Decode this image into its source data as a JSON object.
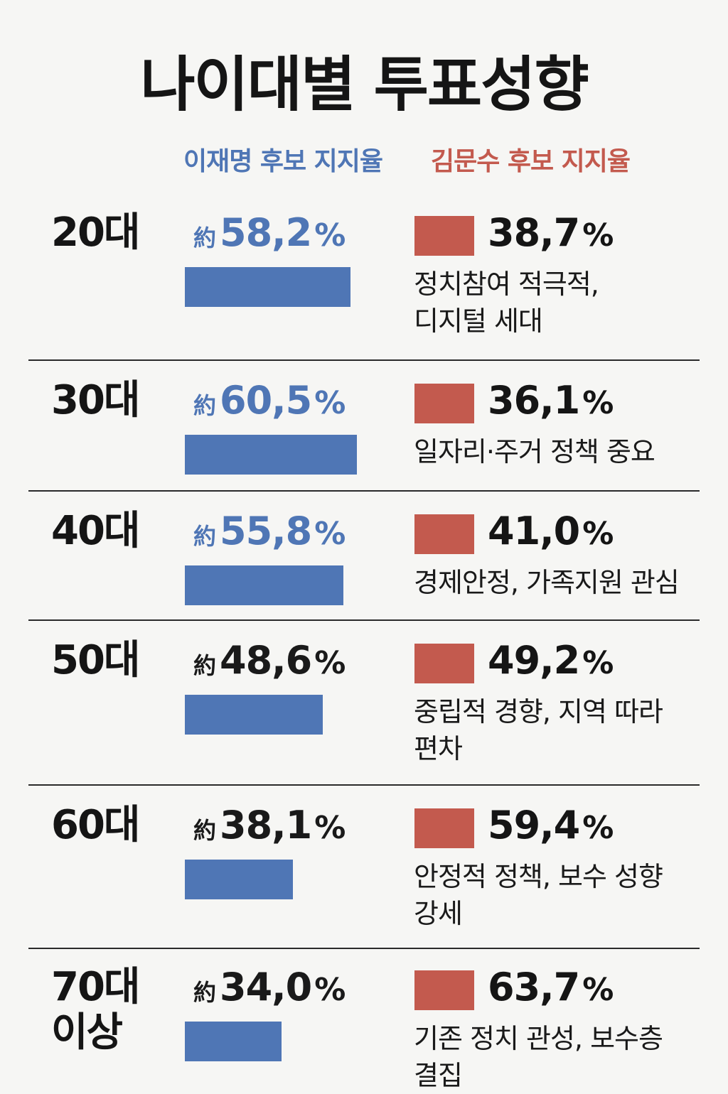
{
  "title": "나이대별 투표성향",
  "chart_data": {
    "type": "bar",
    "title": "나이대별 투표성향",
    "max_value": 100,
    "series": [
      {
        "name": "이재명 후보 지지율",
        "color": "#4f76b5"
      },
      {
        "name": "김문수 후보 지지율",
        "color": "#c35a4e"
      }
    ],
    "rows": [
      {
        "age": "20대",
        "prefix": "約",
        "lee": "58,2",
        "lee_value": 58.2,
        "lee_highlight": true,
        "kim": "38,7",
        "kim_value": 38.7,
        "note": "정치참여 적극적,\n디지털 세대"
      },
      {
        "age": "30대",
        "prefix": "約",
        "lee": "60,5",
        "lee_value": 60.5,
        "lee_highlight": true,
        "kim": "36,1",
        "kim_value": 36.1,
        "note": "일자리·주거 정책 중요"
      },
      {
        "age": "40대",
        "prefix": "約",
        "lee": "55,8",
        "lee_value": 55.8,
        "lee_highlight": true,
        "kim": "41,0",
        "kim_value": 41.0,
        "note": "경제안정, 가족지원 관심"
      },
      {
        "age": "50대",
        "prefix": "約",
        "lee": "48,6",
        "lee_value": 48.6,
        "lee_highlight": false,
        "kim": "49,2",
        "kim_value": 49.2,
        "note": "중립적 경향, 지역 따라\n편차"
      },
      {
        "age": "60대",
        "prefix": "約",
        "lee": "38,1",
        "lee_value": 38.1,
        "lee_highlight": false,
        "kim": "59,4",
        "kim_value": 59.4,
        "note": "안정적 정책, 보수 성향\n강세"
      },
      {
        "age": "70대\n이상",
        "prefix": "約",
        "lee": "34,0",
        "lee_value": 34.0,
        "lee_highlight": false,
        "kim": "63,7",
        "kim_value": 63.7,
        "note": "기존 정치 관성, 보수층\n결집"
      }
    ],
    "percent_sign": "%"
  }
}
